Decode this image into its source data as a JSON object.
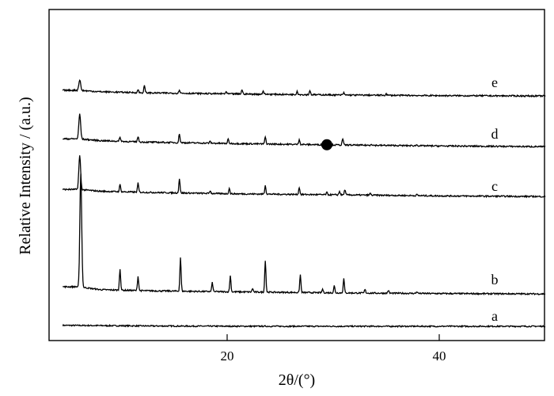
{
  "chart_data": {
    "type": "line",
    "title": "",
    "xlabel": "2θ/(°)",
    "ylabel": "Relative Intensity / (a.u.)",
    "xlim": [
      3,
      50
    ],
    "x_ticks": [
      20,
      40
    ],
    "x_tick_labels": [
      "20",
      "40"
    ],
    "y_ticks": [],
    "grid": false,
    "legend": "none",
    "series_colors": {
      "line": "#000000",
      "marker": "#000000"
    },
    "series": [
      {
        "name": "a",
        "peaks": [],
        "x": [
          4.5,
          8,
          12,
          16,
          20,
          25,
          30,
          35,
          36,
          50
        ],
        "y": [
          0.03,
          0.022,
          0.012,
          0.006,
          0.002,
          0.001,
          0.0,
          0.0,
          0.0,
          0.0
        ]
      },
      {
        "name": "b",
        "peaks": [
          [
            6.2,
            3.2
          ],
          [
            9.9,
            0.6
          ],
          [
            11.6,
            0.4
          ],
          [
            15.6,
            0.95
          ],
          [
            18.6,
            0.25
          ],
          [
            20.3,
            0.45
          ],
          [
            22.4,
            0.1
          ],
          [
            23.6,
            0.9
          ],
          [
            26.9,
            0.5
          ],
          [
            29.0,
            0.1
          ],
          [
            30.1,
            0.2
          ],
          [
            31.0,
            0.4
          ],
          [
            33.0,
            0.1
          ],
          [
            35.2,
            0.08
          ],
          [
            37.9,
            0.05
          ]
        ],
        "baseline_x": [
          4.5,
          6.0,
          8,
          12,
          20,
          30,
          40,
          50
        ],
        "baseline_y": [
          0.22,
          0.22,
          0.14,
          0.11,
          0.08,
          0.05,
          0.03,
          0.02
        ]
      },
      {
        "name": "c",
        "peaks": [
          [
            6.1,
            0.95
          ],
          [
            9.9,
            0.2
          ],
          [
            11.6,
            0.25
          ],
          [
            15.5,
            0.4
          ],
          [
            18.4,
            0.08
          ],
          [
            20.2,
            0.15
          ],
          [
            23.6,
            0.25
          ],
          [
            26.8,
            0.2
          ],
          [
            29.4,
            0.06
          ],
          [
            30.6,
            0.1
          ],
          [
            31.1,
            0.15
          ],
          [
            33.5,
            0.05
          ],
          [
            37.9,
            0.03
          ]
        ],
        "baseline_x": [
          4.5,
          6.0,
          8,
          12,
          20,
          30,
          40,
          50
        ],
        "baseline_y": [
          0.24,
          0.24,
          0.19,
          0.16,
          0.12,
          0.09,
          0.06,
          0.04
        ]
      },
      {
        "name": "d",
        "peaks": [
          [
            6.1,
            0.7
          ],
          [
            9.9,
            0.12
          ],
          [
            11.6,
            0.15
          ],
          [
            15.5,
            0.25
          ],
          [
            18.4,
            0.05
          ],
          [
            20.1,
            0.12
          ],
          [
            23.6,
            0.2
          ],
          [
            26.8,
            0.15
          ],
          [
            30.9,
            0.18
          ],
          [
            33.6,
            0.04
          ],
          [
            37.9,
            0.03
          ]
        ],
        "baseline_x": [
          4.5,
          6.0,
          8,
          12,
          20,
          30,
          40,
          50
        ],
        "baseline_y": [
          0.26,
          0.26,
          0.21,
          0.17,
          0.13,
          0.09,
          0.06,
          0.04
        ]
      },
      {
        "name": "e",
        "peaks": [
          [
            6.1,
            0.3
          ],
          [
            11.6,
            0.08
          ],
          [
            12.2,
            0.2
          ],
          [
            15.5,
            0.1
          ],
          [
            19.9,
            0.06
          ],
          [
            21.4,
            0.12
          ],
          [
            23.4,
            0.1
          ],
          [
            26.6,
            0.1
          ],
          [
            27.8,
            0.12
          ],
          [
            31.0,
            0.06
          ],
          [
            35.0,
            0.04
          ]
        ],
        "baseline_x": [
          4.5,
          6.0,
          8,
          12,
          20,
          30,
          40,
          50
        ],
        "baseline_y": [
          0.2,
          0.2,
          0.16,
          0.13,
          0.1,
          0.07,
          0.05,
          0.04
        ]
      }
    ],
    "annotations": [
      {
        "type": "marker",
        "shape": "filled-circle",
        "series": "d",
        "x": 29.4
      }
    ]
  }
}
